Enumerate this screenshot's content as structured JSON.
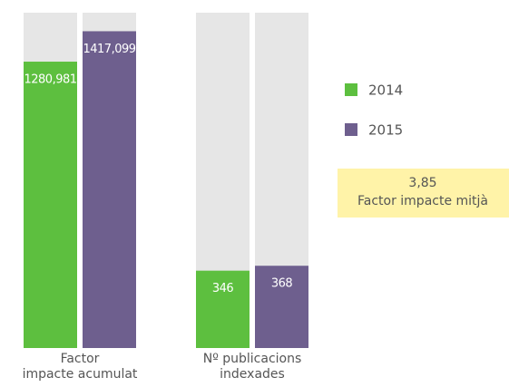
{
  "chart_data": {
    "type": "bar",
    "categories": [
      "Factor\nimpacte acumulat",
      "Nº publicacions\nindexades"
    ],
    "series": [
      {
        "name": "2014",
        "color": "#5dbf3f",
        "values": [
          1280.981,
          346
        ],
        "value_labels": [
          "1280,981",
          "346"
        ]
      },
      {
        "name": "2015",
        "color": "#6e5f8e",
        "values": [
          1417.099,
          368
        ],
        "value_labels": [
          "1417,099",
          "368"
        ]
      }
    ],
    "ylim": [
      0,
      1500
    ],
    "track_color": "#e6e6e6",
    "annotation": {
      "value": 3.85,
      "label": "3,85",
      "text": "Factor impacte mitjà",
      "color": "#fff3a8"
    }
  }
}
